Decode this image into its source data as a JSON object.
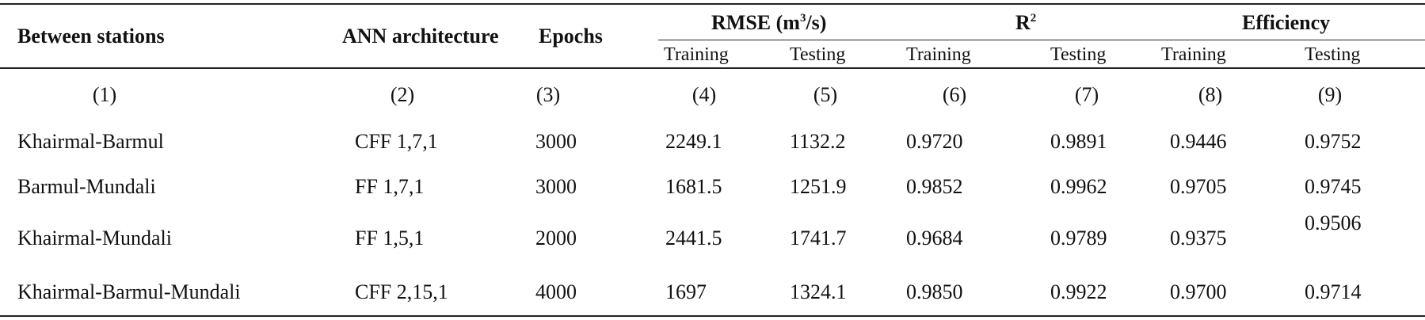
{
  "table": {
    "headers": {
      "between_stations": "Between stations",
      "ann_architecture": "ANN architecture",
      "epochs": "Epochs",
      "rmse_prefix": "RMSE (m",
      "rmse_sup": "3",
      "rmse_suffix": "/s)",
      "r2_base": "R",
      "r2_sup": "2",
      "efficiency": "Efficiency"
    },
    "subheaders": {
      "rmse_training": "Training",
      "rmse_testing": "Testing",
      "r2_training": "Training",
      "r2_testing": "Testing",
      "eff_training": "Training",
      "eff_testing": "Testing"
    },
    "column_numbers": [
      "(1)",
      "(2)",
      "(3)",
      "(4)",
      "(5)",
      "(6)",
      "(7)",
      "(8)",
      "(9)"
    ],
    "rows": [
      {
        "stations": "Khairmal-Barmul",
        "architecture": "CFF 1,7,1",
        "epochs": "3000",
        "rmse_training": "2249.1",
        "rmse_testing": "1132.2",
        "r2_training": "0.9720",
        "r2_testing": "0.9891",
        "eff_training": "0.9446",
        "eff_testing": "0.9752"
      },
      {
        "stations": "Barmul-Mundali",
        "architecture": "FF 1,7,1",
        "epochs": "3000",
        "rmse_training": "1681.5",
        "rmse_testing": "1251.9",
        "r2_training": "0.9852",
        "r2_testing": "0.9962",
        "eff_training": "0.9705",
        "eff_testing": "0.9745"
      },
      {
        "stations": "Khairmal-Mundali",
        "architecture": "FF 1,5,1",
        "epochs": "2000",
        "rmse_training": "2441.5",
        "rmse_testing": "1741.7",
        "r2_training": "0.9684",
        "r2_testing": "0.9789",
        "eff_training": "0.9375",
        "eff_testing": "0.9506"
      },
      {
        "stations": "Khairmal-Barmul-Mundali",
        "architecture": "CFF 2,15,1",
        "epochs": "4000",
        "rmse_training": "1697",
        "rmse_testing": "1324.1",
        "r2_training": "0.9850",
        "r2_testing": "0.9922",
        "eff_training": "0.9700",
        "eff_testing": "0.9714"
      }
    ]
  }
}
